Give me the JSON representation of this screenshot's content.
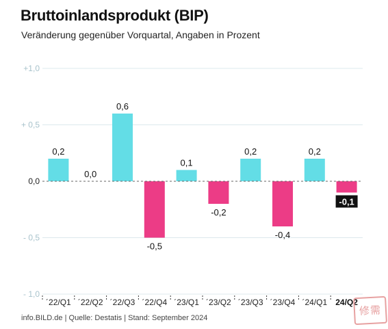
{
  "header": {
    "title": "Bruttoinlandsprodukt (BIP)",
    "subtitle": "Veränderung gegenüber Vorquartal, Angaben in Prozent"
  },
  "footer": {
    "source": "info.BILD.de | Quelle: Destatis | Stand: September 2024"
  },
  "watermark": {
    "text": "修需"
  },
  "chart_data": {
    "type": "bar",
    "categories": [
      "´22/Q1",
      "´22/Q2",
      "´22/Q3",
      "´22/Q4",
      "´23/Q1",
      "´23/Q2",
      "´23/Q3",
      "´23/Q4",
      "´24/Q1",
      "24/Q2"
    ],
    "values": [
      0.2,
      0.0,
      0.6,
      -0.5,
      0.1,
      -0.2,
      0.2,
      -0.4,
      0.2,
      -0.1
    ],
    "value_labels": [
      "0,2",
      "0,0",
      "0,6",
      "-0,5",
      "0,1",
      "-0,2",
      "0,2",
      "-0,4",
      "0,2",
      "-0,1"
    ],
    "highlight_index": 9,
    "yticks": [
      1.0,
      0.5,
      0.0,
      -0.5,
      -1.0
    ],
    "ytick_labels": [
      "+1,0",
      "+ 0,5",
      "0,0",
      "- 0,5",
      "- 1,0"
    ],
    "ylim": [
      -1.0,
      1.0
    ],
    "xlabel": "",
    "ylabel": "",
    "colors": {
      "positive": "#63dde6",
      "negative": "#ec3c86",
      "grid": "#dce8ec",
      "zero_line": "#666666",
      "highlight_bg": "#111111"
    }
  }
}
